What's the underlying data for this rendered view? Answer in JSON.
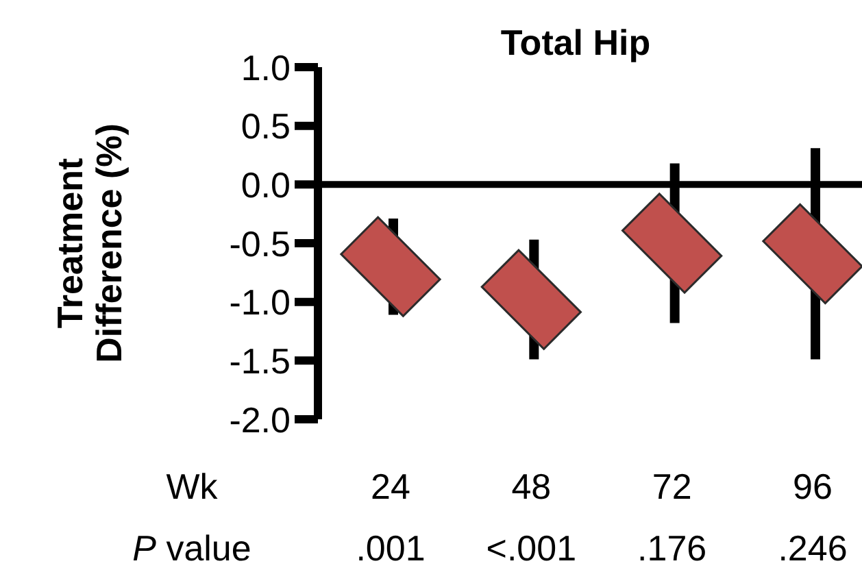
{
  "chart_data": {
    "type": "scatter",
    "title": "Total Hip",
    "xlabel": "Wk",
    "ylabel": "Treatment Difference (%)",
    "categories": [
      "24",
      "48",
      "72",
      "96"
    ],
    "series": [
      {
        "color": "#c0504d",
        "values": [
          -0.7,
          -0.98,
          -0.5,
          -0.59
        ],
        "errors": [
          0.41,
          0.51,
          0.68,
          0.9
        ]
      }
    ],
    "marker": "diamond",
    "ylim": [
      -2.0,
      1.0
    ],
    "yticks": [
      {
        "value": 1,
        "label": "1.0"
      },
      {
        "value": 0.5,
        "label": "0.5"
      },
      {
        "value": 0,
        "label": "0.0"
      },
      {
        "value": -0.5,
        "label": "-0.5"
      },
      {
        "value": -1,
        "label": "-1.0"
      },
      {
        "value": -1.5,
        "label": "-1.5"
      },
      {
        "value": -2,
        "label": "-2.0"
      }
    ],
    "ref_lines": [
      {
        "axis": "y",
        "value": 0
      }
    ],
    "annotations": [
      "P value",
      ".001",
      "<.001",
      ".176",
      ".246"
    ]
  }
}
